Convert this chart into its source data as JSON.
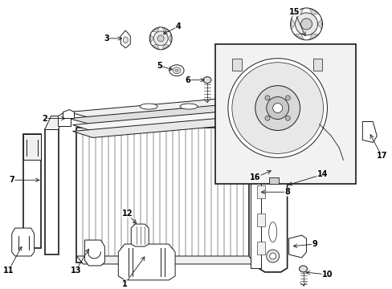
{
  "bg_color": "#ffffff",
  "line_color": "#1a1a1a",
  "label_color": "#000000",
  "fig_width": 4.89,
  "fig_height": 3.6,
  "dpi": 100,
  "lw": 0.7,
  "lw_thick": 1.2
}
